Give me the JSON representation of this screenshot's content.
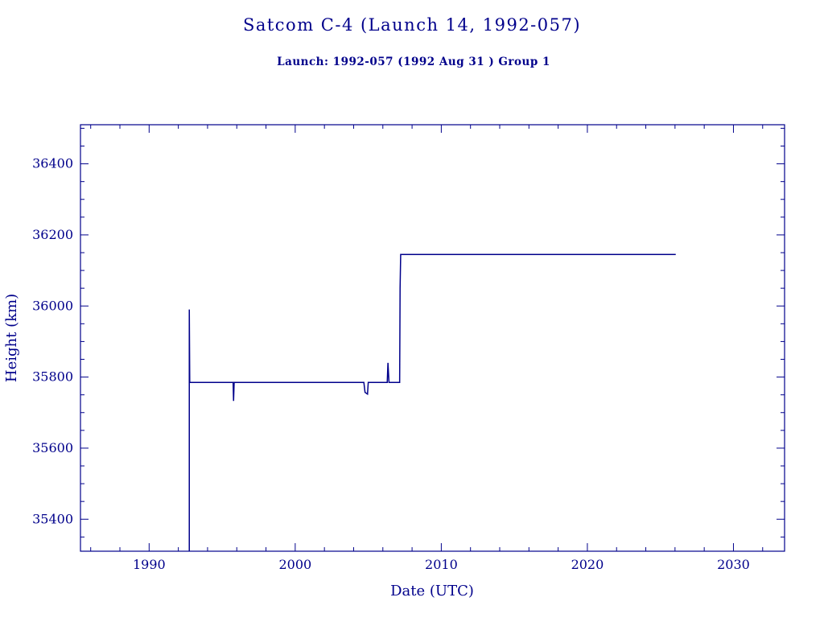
{
  "chart_data": {
    "type": "line",
    "title": "Satcom C-4 (Launch 14, 1992-057)",
    "subtitle": "Launch: 1992-057  (1992 Aug 31 )  Group 1",
    "xlabel": "Date (UTC)",
    "ylabel": "Height (km)",
    "xlim": [
      1985.3,
      2033.5
    ],
    "ylim": [
      35310,
      36510
    ],
    "xticks": [
      1990,
      2000,
      2010,
      2020,
      2030
    ],
    "yticks": [
      35400,
      35600,
      35800,
      36000,
      36200,
      36400
    ],
    "x_minor_step": 2,
    "y_minor_step": 50,
    "grid": false,
    "legend": "none",
    "color": "#00008B",
    "series": [
      {
        "name": "height-km",
        "points": [
          [
            1992.75,
            35310
          ],
          [
            1992.75,
            35990
          ],
          [
            1992.78,
            35785
          ],
          [
            1995.75,
            35785
          ],
          [
            1995.78,
            35733
          ],
          [
            1995.82,
            35785
          ],
          [
            2004.7,
            35785
          ],
          [
            2004.78,
            35757
          ],
          [
            2004.95,
            35752
          ],
          [
            2005.0,
            35785
          ],
          [
            2006.3,
            35785
          ],
          [
            2006.35,
            35840
          ],
          [
            2006.42,
            35785
          ],
          [
            2007.15,
            35785
          ],
          [
            2007.18,
            36050
          ],
          [
            2007.22,
            36145
          ],
          [
            2026.05,
            36145
          ]
        ]
      }
    ]
  }
}
